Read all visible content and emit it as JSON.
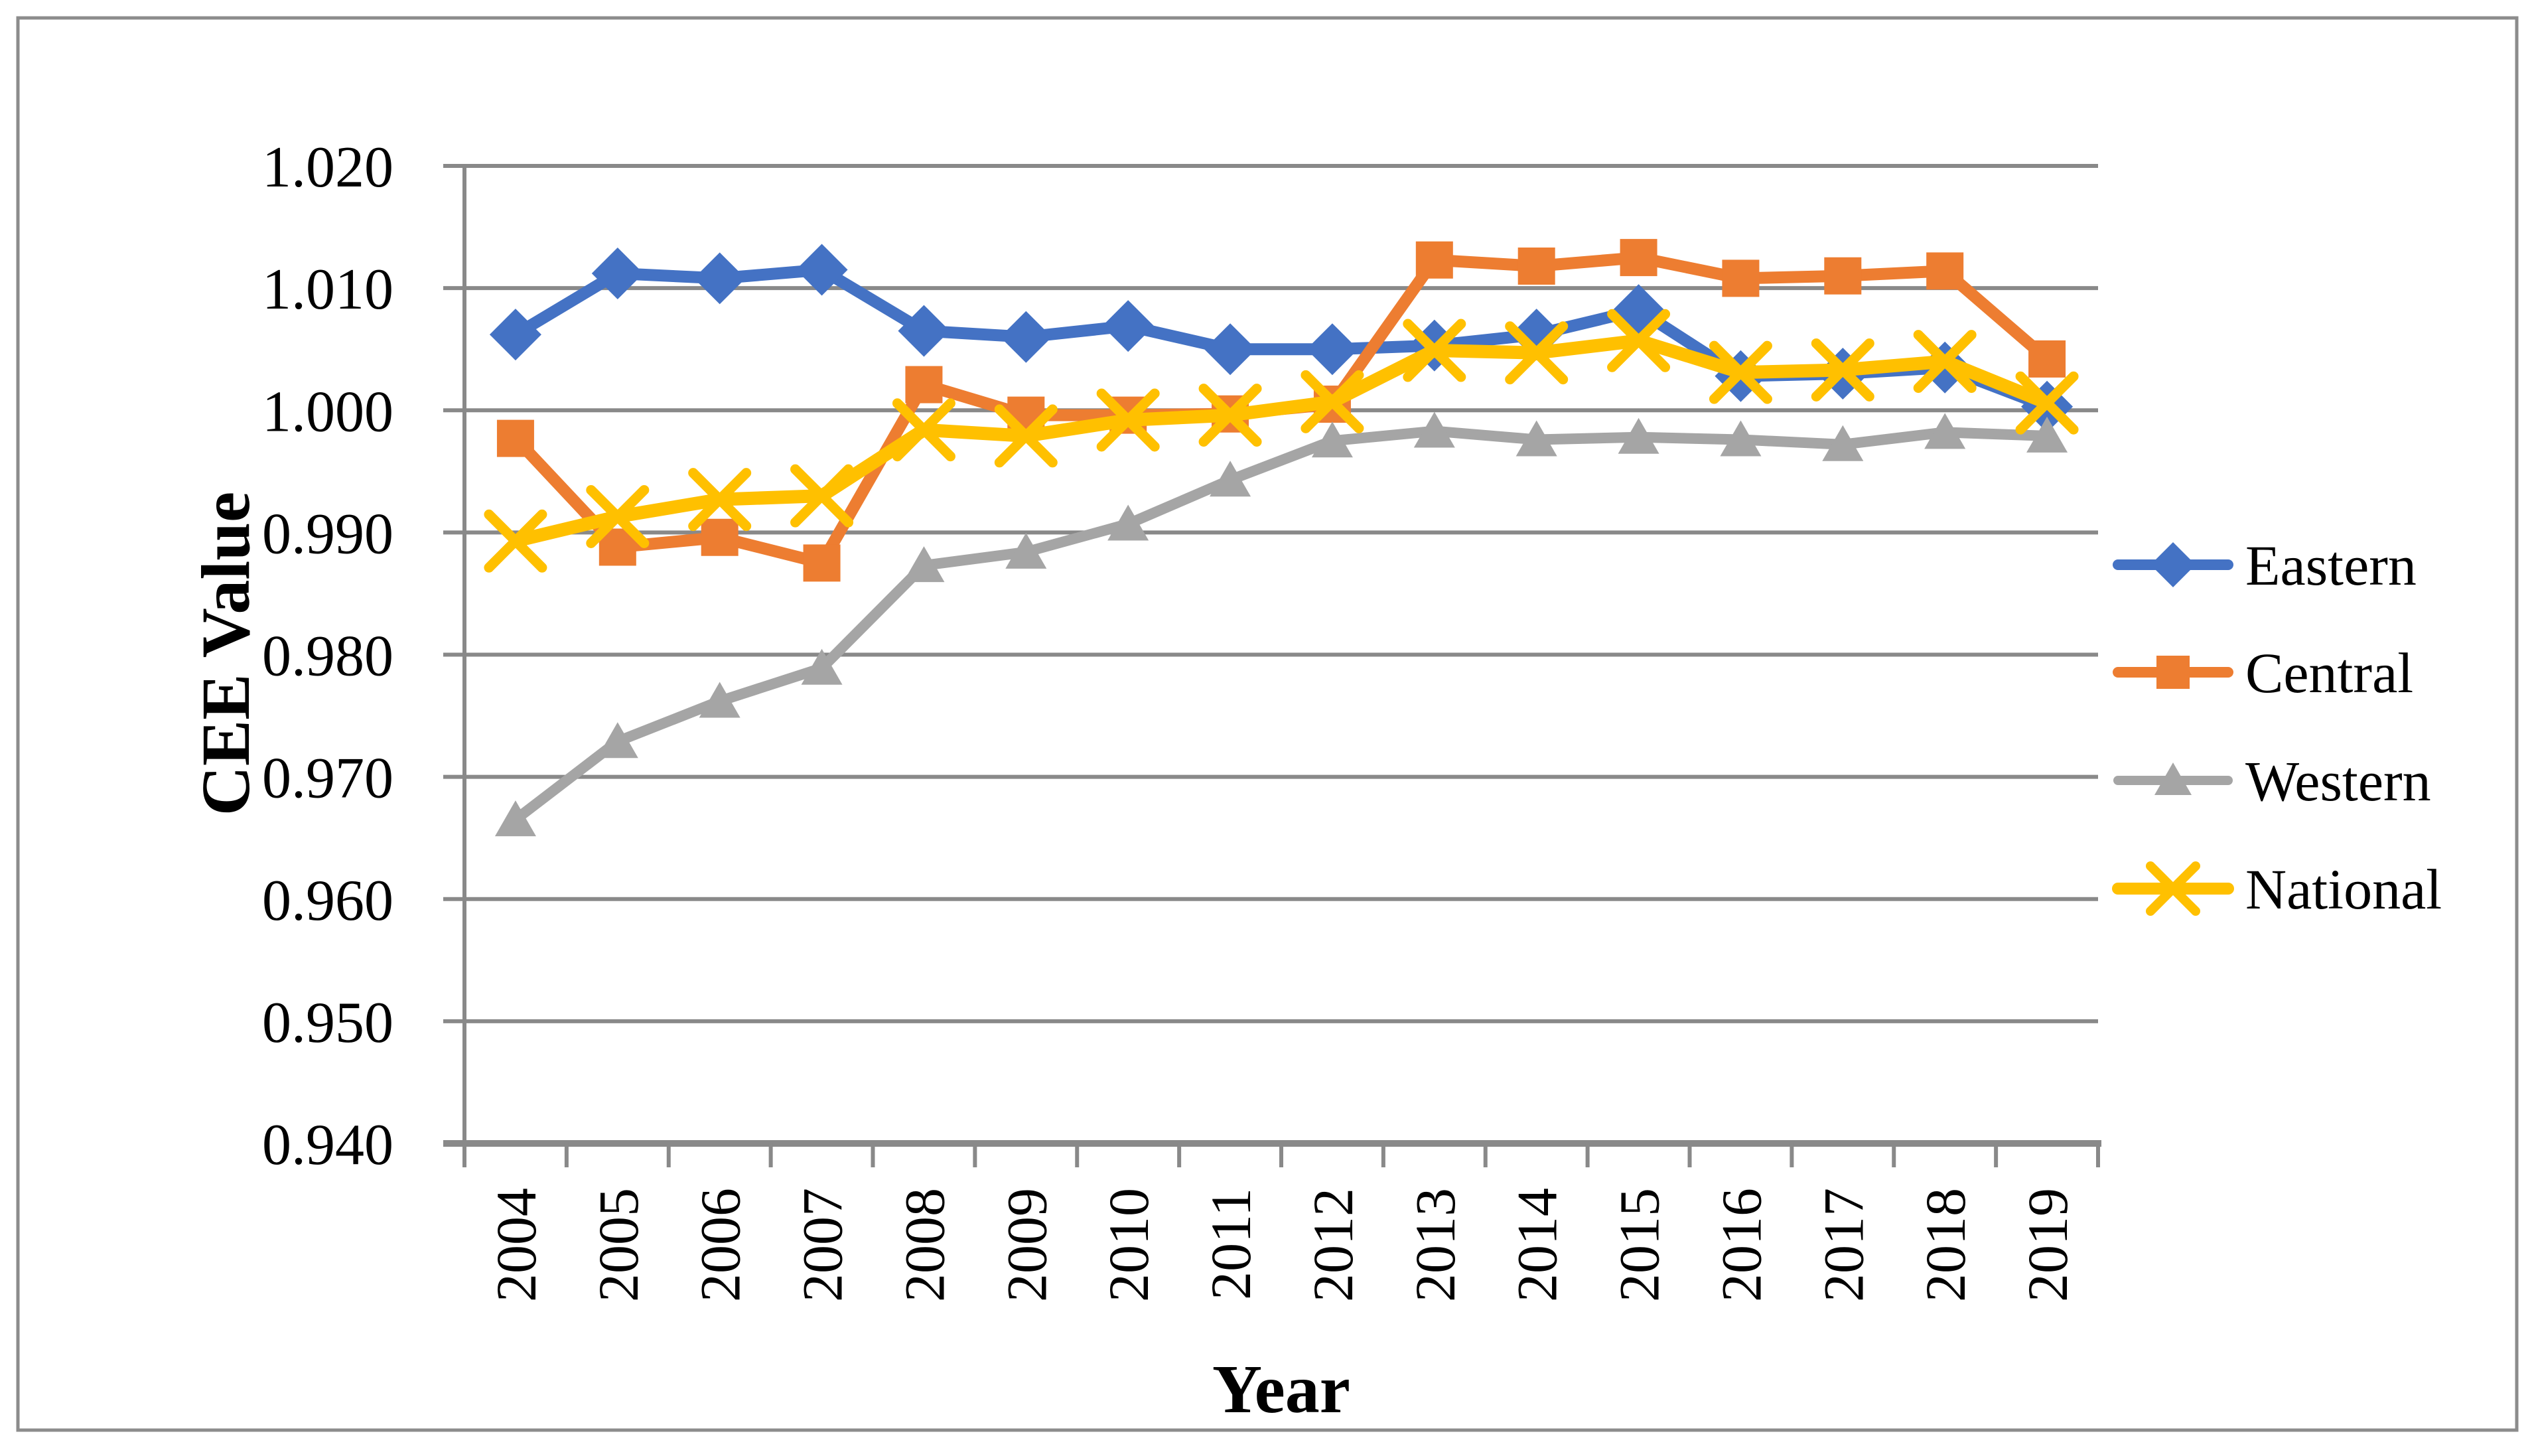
{
  "chart_data": {
    "type": "line",
    "title": "",
    "xlabel": "Year",
    "ylabel": "CEE Value",
    "categories": [
      "2004",
      "2005",
      "2006",
      "2007",
      "2008",
      "2009",
      "2010",
      "2011",
      "2012",
      "2013",
      "2014",
      "2015",
      "2016",
      "2017",
      "2018",
      "2019"
    ],
    "ylim": [
      0.94,
      1.02
    ],
    "ytick_step": 0.01,
    "ytick_labels": [
      "0.940",
      "0.950",
      "0.960",
      "0.970",
      "0.980",
      "0.990",
      "1.000",
      "1.010",
      "1.020"
    ],
    "grid": "horizontal",
    "legend_position": "right",
    "series": [
      {
        "name": "Eastern",
        "color": "#4472C4",
        "marker": "diamond",
        "line_width": 18,
        "values": [
          1.0062,
          1.0112,
          1.0108,
          1.0115,
          1.0065,
          1.006,
          1.0069,
          1.005,
          1.005,
          1.0053,
          1.0062,
          1.0082,
          1.0028,
          1.003,
          1.0035,
          1.0003
        ]
      },
      {
        "name": "Central",
        "color": "#ED7D31",
        "marker": "square",
        "line_width": 18,
        "values": [
          0.9977,
          0.9888,
          0.9896,
          0.9875,
          1.0021,
          0.9996,
          0.9996,
          0.9997,
          1.0005,
          1.0123,
          1.0118,
          1.0125,
          1.0108,
          1.011,
          1.0114,
          1.0042
        ]
      },
      {
        "name": "Western",
        "color": "#A5A5A5",
        "marker": "triangle",
        "line_width": 16,
        "values": [
          0.9665,
          0.9729,
          0.9762,
          0.9789,
          0.9873,
          0.9884,
          0.9907,
          0.9943,
          0.9975,
          0.9983,
          0.9976,
          0.9978,
          0.9976,
          0.9972,
          0.9982,
          0.9979
        ]
      },
      {
        "name": "National",
        "color": "#FFC000",
        "marker": "x",
        "line_width": 20,
        "values": [
          0.9893,
          0.9913,
          0.9927,
          0.993,
          0.9984,
          0.9979,
          0.9992,
          0.9996,
          1.0007,
          1.0049,
          1.0047,
          1.0057,
          1.0031,
          1.0033,
          1.004,
          1.0006
        ]
      }
    ],
    "colors": {
      "grid_line": "#898989",
      "axis_line": "#898989",
      "figure_border": "#8C8C8C",
      "text": "#000000",
      "background": "#FFFFFF"
    }
  }
}
